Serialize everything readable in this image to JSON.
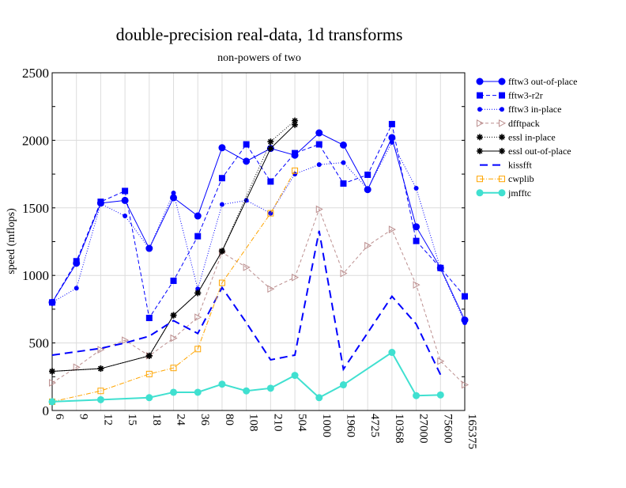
{
  "chart_data": {
    "type": "line",
    "title": "double-precision real-data, 1d transforms",
    "subtitle": "non-powers of two",
    "xlabel": "",
    "ylabel": "speed (mflops)",
    "ylim": [
      0,
      2500
    ],
    "yticks": [
      0,
      500,
      1000,
      1500,
      2000,
      2500
    ],
    "grid": true,
    "legend_position": "right",
    "categories": [
      "6",
      "9",
      "12",
      "15",
      "18",
      "24",
      "36",
      "80",
      "108",
      "210",
      "504",
      "1000",
      "1960",
      "4725",
      "10368",
      "27000",
      "75600",
      "165375"
    ],
    "series": [
      {
        "name": "fftw3 out-of-place",
        "color": "#0000ff",
        "dash": "",
        "marker": "circle",
        "values": [
          800,
          1090,
          1535,
          1555,
          1200,
          1575,
          1440,
          1945,
          1845,
          1940,
          1890,
          2055,
          1965,
          1635,
          2020,
          1360,
          1055,
          670
        ]
      },
      {
        "name": "fftw3-r2r",
        "color": "#0000ff",
        "dash": "5,3",
        "marker": "square",
        "values": [
          800,
          1105,
          1545,
          1625,
          685,
          960,
          1290,
          1720,
          1970,
          1695,
          1905,
          1970,
          1680,
          1745,
          2120,
          1255,
          1055,
          845
        ]
      },
      {
        "name": "fftw3 in-place",
        "color": "#0000ff",
        "dash": "1,2",
        "marker": "dot",
        "values": [
          800,
          905,
          1530,
          1440,
          1200,
          1610,
          900,
          1525,
          1555,
          1460,
          1750,
          1820,
          1835,
          1640,
          1985,
          1645,
          1050,
          650
        ]
      },
      {
        "name": "dfftpack",
        "color": "#bc8f8f",
        "dash": "4,3",
        "marker": "triangle",
        "values": [
          205,
          320,
          450,
          520,
          405,
          535,
          690,
          1170,
          1060,
          900,
          985,
          1490,
          1015,
          1220,
          1340,
          930,
          365,
          190
        ]
      },
      {
        "name": "essl in-place",
        "color": "#000000",
        "dash": "1,2",
        "marker": "star",
        "values": [
          290,
          null,
          310,
          null,
          405,
          705,
          870,
          1180,
          null,
          1990,
          2145,
          null,
          null,
          null,
          null,
          null,
          null,
          null
        ]
      },
      {
        "name": "essl out-of-place",
        "color": "#000000",
        "dash": "",
        "marker": "star",
        "values": [
          290,
          null,
          310,
          null,
          405,
          705,
          870,
          1180,
          null,
          1940,
          2115,
          null,
          null,
          null,
          null,
          null,
          null,
          null
        ]
      },
      {
        "name": "kissfft",
        "color": "#0000ff",
        "dash": "10,6",
        "marker": "none",
        "width": 2,
        "values": [
          410,
          435,
          460,
          500,
          550,
          665,
          570,
          910,
          650,
          375,
          410,
          1330,
          305,
          null,
          845,
          640,
          265,
          null
        ]
      },
      {
        "name": "cwplib",
        "color": "#ffa500",
        "dash": "6,2,1,2",
        "marker": "opensquare",
        "values": [
          65,
          null,
          145,
          null,
          270,
          315,
          455,
          945,
          null,
          1460,
          1775,
          null,
          null,
          null,
          null,
          null,
          null,
          null
        ]
      },
      {
        "name": "jmfftc",
        "color": "#40e0d0",
        "dash": "",
        "marker": "circle",
        "width": 2,
        "values": [
          65,
          null,
          80,
          null,
          95,
          135,
          135,
          195,
          145,
          165,
          260,
          95,
          190,
          null,
          430,
          110,
          115,
          null
        ]
      }
    ]
  }
}
